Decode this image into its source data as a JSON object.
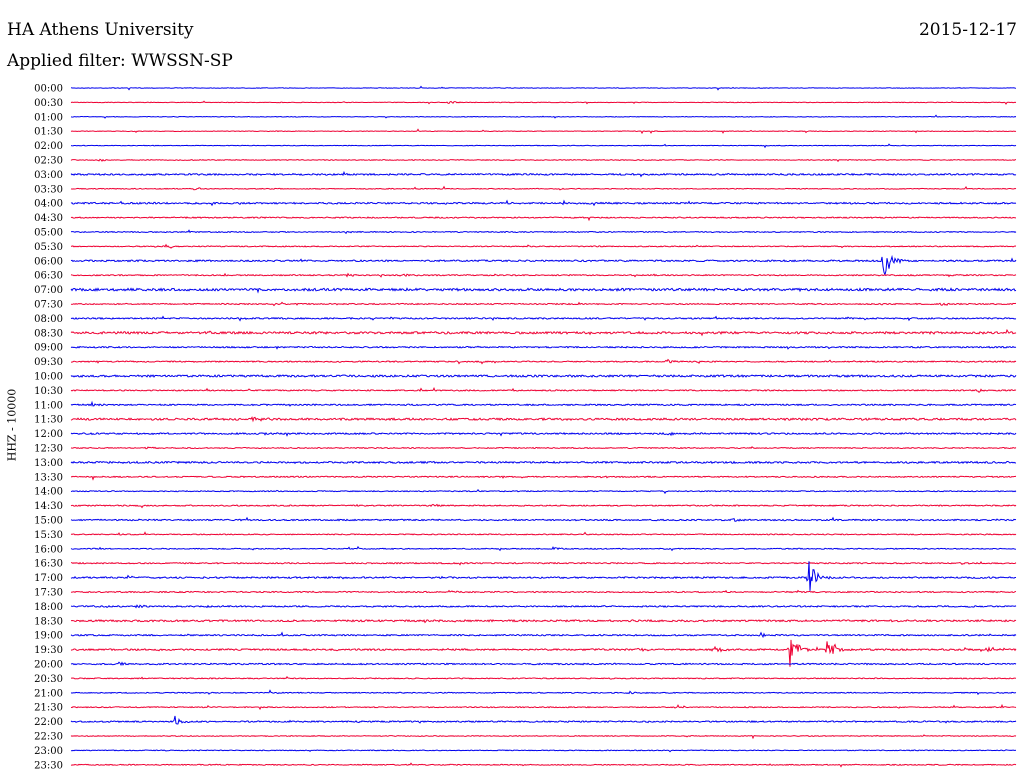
{
  "header": {
    "title": "HA Athens University",
    "date": "2015-12-17",
    "filter": "Applied filter: WWSSN-SP"
  },
  "colors": {
    "blue": "#0000ee",
    "red": "#ee0033"
  },
  "chart_data": {
    "type": "line",
    "title": "HA Athens University",
    "subtitle": "Applied filter: WWSSN-SP",
    "ylabel": "HHZ - 10000",
    "xlabel": "",
    "traces": [
      {
        "time": "00:00",
        "color": "blue",
        "noise": 0.3,
        "events": []
      },
      {
        "time": "00:30",
        "color": "red",
        "noise": 0.3,
        "events": [
          {
            "t": 0.4,
            "amp": 2
          }
        ]
      },
      {
        "time": "01:00",
        "color": "blue",
        "noise": 0.3,
        "events": []
      },
      {
        "time": "01:30",
        "color": "red",
        "noise": 0.3,
        "events": []
      },
      {
        "time": "02:00",
        "color": "blue",
        "noise": 0.3,
        "events": []
      },
      {
        "time": "02:30",
        "color": "red",
        "noise": 0.4,
        "events": [
          {
            "t": 0.03,
            "amp": 2
          }
        ]
      },
      {
        "time": "03:00",
        "color": "blue",
        "noise": 0.8,
        "events": []
      },
      {
        "time": "03:30",
        "color": "red",
        "noise": 0.4,
        "events": [
          {
            "t": 0.13,
            "amp": 2
          }
        ]
      },
      {
        "time": "04:00",
        "color": "blue",
        "noise": 0.8,
        "events": [
          {
            "t": 0.52,
            "amp": 2
          }
        ]
      },
      {
        "time": "04:30",
        "color": "red",
        "noise": 0.6,
        "events": []
      },
      {
        "time": "05:00",
        "color": "blue",
        "noise": 0.5,
        "events": [
          {
            "t": 0.29,
            "amp": 2
          }
        ]
      },
      {
        "time": "05:30",
        "color": "red",
        "noise": 0.5,
        "events": [
          {
            "t": 0.1,
            "amp": 3
          }
        ]
      },
      {
        "time": "06:00",
        "color": "blue",
        "noise": 0.8,
        "events": [
          {
            "t": 0.86,
            "amp": 20
          }
        ]
      },
      {
        "time": "06:30",
        "color": "red",
        "noise": 0.6,
        "events": [
          {
            "t": 0.29,
            "amp": 3
          },
          {
            "t": 0.35,
            "amp": 2
          }
        ]
      },
      {
        "time": "07:00",
        "color": "blue",
        "noise": 1.2,
        "events": []
      },
      {
        "time": "07:30",
        "color": "red",
        "noise": 0.6,
        "events": [
          {
            "t": 0.92,
            "amp": 2
          }
        ]
      },
      {
        "time": "08:00",
        "color": "blue",
        "noise": 0.7,
        "events": [
          {
            "t": 0.82,
            "amp": 2
          }
        ]
      },
      {
        "time": "08:30",
        "color": "red",
        "noise": 1.1,
        "events": []
      },
      {
        "time": "09:00",
        "color": "blue",
        "noise": 0.7,
        "events": []
      },
      {
        "time": "09:30",
        "color": "red",
        "noise": 0.6,
        "events": [
          {
            "t": 0.63,
            "amp": 3
          }
        ]
      },
      {
        "time": "10:00",
        "color": "blue",
        "noise": 1.0,
        "events": []
      },
      {
        "time": "10:30",
        "color": "red",
        "noise": 0.6,
        "events": [
          {
            "t": 0.96,
            "amp": 2
          }
        ]
      },
      {
        "time": "11:00",
        "color": "blue",
        "noise": 0.7,
        "events": [
          {
            "t": 0.02,
            "amp": 3
          }
        ]
      },
      {
        "time": "11:30",
        "color": "red",
        "noise": 1.0,
        "events": [
          {
            "t": 0.19,
            "amp": 5
          }
        ]
      },
      {
        "time": "12:00",
        "color": "blue",
        "noise": 0.8,
        "events": [
          {
            "t": 0.63,
            "amp": 2
          }
        ]
      },
      {
        "time": "12:30",
        "color": "red",
        "noise": 0.5,
        "events": [
          {
            "t": 0.08,
            "amp": 2
          }
        ]
      },
      {
        "time": "13:00",
        "color": "blue",
        "noise": 0.9,
        "events": []
      },
      {
        "time": "13:30",
        "color": "red",
        "noise": 0.6,
        "events": [
          {
            "t": 0.56,
            "amp": 2
          }
        ]
      },
      {
        "time": "14:00",
        "color": "blue",
        "noise": 0.5,
        "events": []
      },
      {
        "time": "14:30",
        "color": "red",
        "noise": 0.6,
        "events": [
          {
            "t": 0.38,
            "amp": 2
          }
        ]
      },
      {
        "time": "15:00",
        "color": "blue",
        "noise": 0.7,
        "events": [
          {
            "t": 0.7,
            "amp": 2
          }
        ]
      },
      {
        "time": "15:30",
        "color": "red",
        "noise": 0.5,
        "events": [
          {
            "t": 0.05,
            "amp": 2
          }
        ]
      },
      {
        "time": "16:00",
        "color": "blue",
        "noise": 0.5,
        "events": [
          {
            "t": 0.51,
            "amp": 2
          }
        ]
      },
      {
        "time": "16:30",
        "color": "red",
        "noise": 0.6,
        "events": [
          {
            "t": 0.94,
            "amp": 2
          }
        ]
      },
      {
        "time": "17:00",
        "color": "blue",
        "noise": 0.8,
        "events": [
          {
            "t": 0.78,
            "amp": 24
          },
          {
            "t": 0.06,
            "amp": 2
          }
        ]
      },
      {
        "time": "17:30",
        "color": "red",
        "noise": 0.6,
        "events": [
          {
            "t": 0.4,
            "amp": 2
          }
        ]
      },
      {
        "time": "18:00",
        "color": "blue",
        "noise": 0.7,
        "events": [
          {
            "t": 0.07,
            "amp": 3
          },
          {
            "t": 0.14,
            "amp": 2
          }
        ]
      },
      {
        "time": "18:30",
        "color": "red",
        "noise": 0.9,
        "events": []
      },
      {
        "time": "19:00",
        "color": "blue",
        "noise": 0.7,
        "events": [
          {
            "t": 0.73,
            "amp": 3
          }
        ]
      },
      {
        "time": "19:30",
        "color": "red",
        "noise": 0.8,
        "events": [
          {
            "t": 0.6,
            "amp": 3
          },
          {
            "t": 0.68,
            "amp": 4
          },
          {
            "t": 0.76,
            "amp": 24
          },
          {
            "t": 0.8,
            "amp": 18
          },
          {
            "t": 0.97,
            "amp": 4
          }
        ]
      },
      {
        "time": "20:00",
        "color": "blue",
        "noise": 0.7,
        "events": [
          {
            "t": 0.05,
            "amp": 4
          }
        ]
      },
      {
        "time": "20:30",
        "color": "red",
        "noise": 0.5,
        "events": []
      },
      {
        "time": "21:00",
        "color": "blue",
        "noise": 0.5,
        "events": [
          {
            "t": 0.59,
            "amp": 2
          }
        ]
      },
      {
        "time": "21:30",
        "color": "red",
        "noise": 0.5,
        "events": [
          {
            "t": 0.64,
            "amp": 4
          }
        ]
      },
      {
        "time": "22:00",
        "color": "blue",
        "noise": 0.7,
        "events": [
          {
            "t": 0.11,
            "amp": 6
          }
        ]
      },
      {
        "time": "22:30",
        "color": "red",
        "noise": 0.4,
        "events": []
      },
      {
        "time": "23:00",
        "color": "blue",
        "noise": 0.4,
        "events": []
      },
      {
        "time": "23:30",
        "color": "red",
        "noise": 0.5,
        "events": []
      }
    ]
  }
}
